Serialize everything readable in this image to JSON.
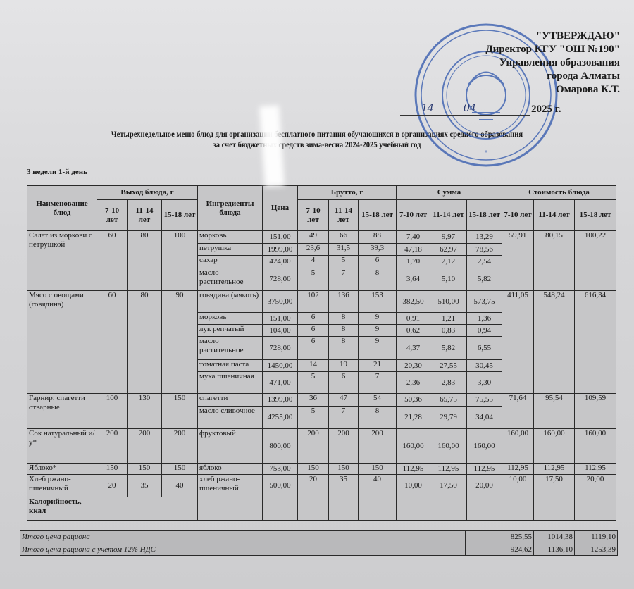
{
  "approval": {
    "lines": [
      "\"УТВЕРЖДАЮ\"",
      "Директор КГУ \"ОШ №190\"",
      "Управления образования",
      "города Алматы",
      "Омарова К.Т."
    ],
    "date_day": "14",
    "date_month": "04",
    "date_year": "2025 г.",
    "stamp_color": "#3a5fb0"
  },
  "title": {
    "line1": "Четырехнедельное меню блюд для организации бесплатного питания обучающихся в организациях среднего образования",
    "line2": "за счет бюджетных средств зима-весна  2024-2025 учебный год"
  },
  "week_label": "3 недели 1-й день",
  "table": {
    "headers": {
      "dish": "Наименование блюд",
      "yield": "Выход блюда, г",
      "ingredients": "Ингредиенты блюда",
      "price": "Цена",
      "brutto": "Брутто, г",
      "sum": "Сумма",
      "cost": "Стоимость блюда",
      "age_7_10": "7-10 лет",
      "age_11_14": "11-14 лет",
      "age_15_18": "15-18 лет"
    },
    "dishes": [
      {
        "name": "Салат из моркови с петрушкой",
        "yield": [
          "60",
          "80",
          "100"
        ],
        "cost": [
          "59,91",
          "80,15",
          "100,22"
        ],
        "ingredients": [
          {
            "name": "морковь",
            "price": "151,00",
            "brutto": [
              "49",
              "66",
              "88"
            ],
            "sum": [
              "7,40",
              "9,97",
              "13,29"
            ]
          },
          {
            "name": "петрушка",
            "price": "1999,00",
            "brutto": [
              "23,6",
              "31,5",
              "39,3"
            ],
            "sum": [
              "47,18",
              "62,97",
              "78,56"
            ]
          },
          {
            "name": "сахар",
            "price": "424,00",
            "brutto": [
              "4",
              "5",
              "6"
            ],
            "sum": [
              "1,70",
              "2,12",
              "2,54"
            ]
          },
          {
            "name": "масло растительное",
            "price": "728,00",
            "brutto": [
              "5",
              "7",
              "8"
            ],
            "sum": [
              "3,64",
              "5,10",
              "5,82"
            ]
          }
        ]
      },
      {
        "name": "Мясо с овощами (говядина)",
        "yield": [
          "60",
          "80",
          "90"
        ],
        "cost": [
          "411,05",
          "548,24",
          "616,34"
        ],
        "ingredients": [
          {
            "name": "говядина (мякоть)",
            "price": "3750,00",
            "brutto": [
              "102",
              "136",
              "153"
            ],
            "sum": [
              "382,50",
              "510,00",
              "573,75"
            ]
          },
          {
            "name": "морковь",
            "price": "151,00",
            "brutto": [
              "6",
              "8",
              "9"
            ],
            "sum": [
              "0,91",
              "1,21",
              "1,36"
            ]
          },
          {
            "name": "лук репчатый",
            "price": "104,00",
            "brutto": [
              "6",
              "8",
              "9"
            ],
            "sum": [
              "0,62",
              "0,83",
              "0,94"
            ]
          },
          {
            "name": "масло растительное",
            "price": "728,00",
            "brutto": [
              "6",
              "8",
              "9"
            ],
            "sum": [
              "4,37",
              "5,82",
              "6,55"
            ]
          },
          {
            "name": "томатная паста",
            "price": "1450,00",
            "brutto": [
              "14",
              "19",
              "21"
            ],
            "sum": [
              "20,30",
              "27,55",
              "30,45"
            ]
          },
          {
            "name": "мука пшеничная",
            "price": "471,00",
            "brutto": [
              "5",
              "6",
              "7"
            ],
            "sum": [
              "2,36",
              "2,83",
              "3,30"
            ]
          }
        ]
      },
      {
        "name": "Гарнир: спагетти отварные",
        "yield": [
          "100",
          "130",
          "150"
        ],
        "cost": [
          "71,64",
          "95,54",
          "109,59"
        ],
        "ingredients": [
          {
            "name": "спагетти",
            "price": "1399,00",
            "brutto": [
              "36",
              "47",
              "54"
            ],
            "sum": [
              "50,36",
              "65,75",
              "75,55"
            ]
          },
          {
            "name": "масло сливочное",
            "price": "4255,00",
            "brutto": [
              "5",
              "7",
              "8"
            ],
            "sum": [
              "21,28",
              "29,79",
              "34,04"
            ]
          }
        ]
      },
      {
        "name": "Сок натуральный и/у*",
        "yield": [
          "200",
          "200",
          "200"
        ],
        "cost": [
          "160,00",
          "160,00",
          "160,00"
        ],
        "ingredients": [
          {
            "name": "фруктовый",
            "price": "800,00",
            "brutto": [
              "200",
              "200",
              "200"
            ],
            "sum": [
              "160,00",
              "160,00",
              "160,00"
            ]
          }
        ]
      },
      {
        "name": "Яблоко*",
        "yield": [
          "150",
          "150",
          "150"
        ],
        "cost": [
          "112,95",
          "112,95",
          "112,95"
        ],
        "ingredients": [
          {
            "name": "яблоко",
            "price": "753,00",
            "brutto": [
              "150",
              "150",
              "150"
            ],
            "sum": [
              "112,95",
              "112,95",
              "112,95"
            ]
          }
        ]
      },
      {
        "name": "Хлеб ржано-пшеничный",
        "yield": [
          "20",
          "35",
          "40"
        ],
        "cost": [
          "10,00",
          "17,50",
          "20,00"
        ],
        "ingredients": [
          {
            "name": "хлеб ржано-пшеничный",
            "price": "500,00",
            "brutto": [
              "20",
              "35",
              "40"
            ],
            "sum": [
              "10,00",
              "17,50",
              "20,00"
            ]
          }
        ]
      }
    ],
    "calories_label": "Калорийность, ккал"
  },
  "totals": [
    {
      "label": "Итого цена рациона",
      "values": [
        "825,55",
        "1014,38",
        "1119,10"
      ]
    },
    {
      "label": "Итого цена рациона с учетом 12% НДС",
      "values": [
        "924,62",
        "1136,10",
        "1253,39"
      ]
    }
  ]
}
